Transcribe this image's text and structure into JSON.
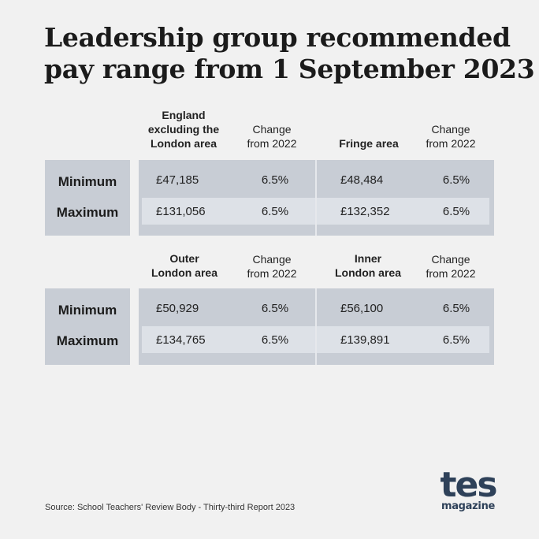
{
  "title": {
    "line1": "Leadership group recommended",
    "line2": "pay range from 1 September 2023"
  },
  "tables": [
    {
      "regions": [
        {
          "name_lines": [
            "England",
            "excluding the",
            "London area"
          ],
          "change_lines": [
            "Change",
            "from 2022"
          ]
        },
        {
          "name_lines": [
            "Fringe area"
          ],
          "change_lines": [
            "Change",
            "from 2022"
          ]
        }
      ],
      "rows": [
        {
          "label": "Minimum",
          "values": [
            "£47,185",
            "6.5%",
            "£48,484",
            "6.5%"
          ]
        },
        {
          "label": "Maximum",
          "values": [
            "£131,056",
            "6.5%",
            "£132,352",
            "6.5%"
          ]
        }
      ]
    },
    {
      "regions": [
        {
          "name_lines": [
            "Outer",
            "London area"
          ],
          "change_lines": [
            "Change",
            "from 2022"
          ]
        },
        {
          "name_lines": [
            "Inner",
            "London area"
          ],
          "change_lines": [
            "Change",
            "from 2022"
          ]
        }
      ],
      "rows": [
        {
          "label": "Minimum",
          "values": [
            "£50,929",
            "6.5%",
            "£56,100",
            "6.5%"
          ]
        },
        {
          "label": "Maximum",
          "values": [
            "£134,765",
            "6.5%",
            "£139,891",
            "6.5%"
          ]
        }
      ]
    }
  ],
  "source": "Source: School Teachers' Review Body - Thirty-third Report 2023",
  "logo": {
    "main": "tes",
    "sub": "magazine"
  },
  "colors": {
    "background": "#f1f1f1",
    "table_fill": "#c8cdd5",
    "stripe": "#dde1e7",
    "logo": "#2e4159"
  }
}
